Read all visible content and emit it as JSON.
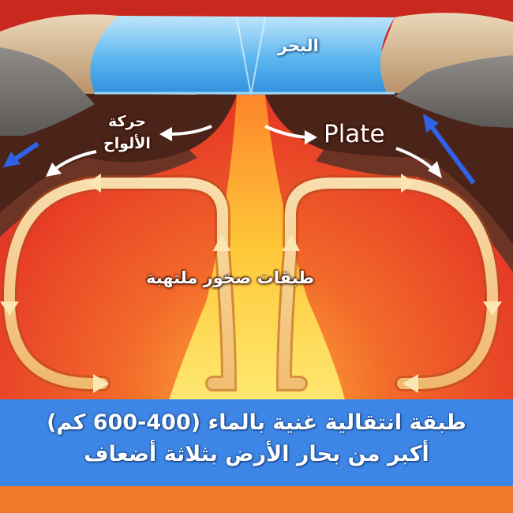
{
  "labels": {
    "sea": "البحر",
    "plate_movement_line1": "حركة",
    "plate_movement_line2": "الألواح",
    "plate": "Plate",
    "hot_rock_layers": "طبقات صخور ملتهبة"
  },
  "caption": {
    "line1": "طبقة انتقالية غنية بالماء (400-600 كم)",
    "line2": "أكبر من بحار الأرض بثلاثة أضعاف"
  },
  "colors": {
    "sea": "#3ea4ea",
    "mantle_red": "#e63a26",
    "magma_yellow": "#ffd93a",
    "plate_crust": "#4a2418",
    "subduction_arrow": "#2f62e6",
    "caption_band": "#3e86e6"
  }
}
